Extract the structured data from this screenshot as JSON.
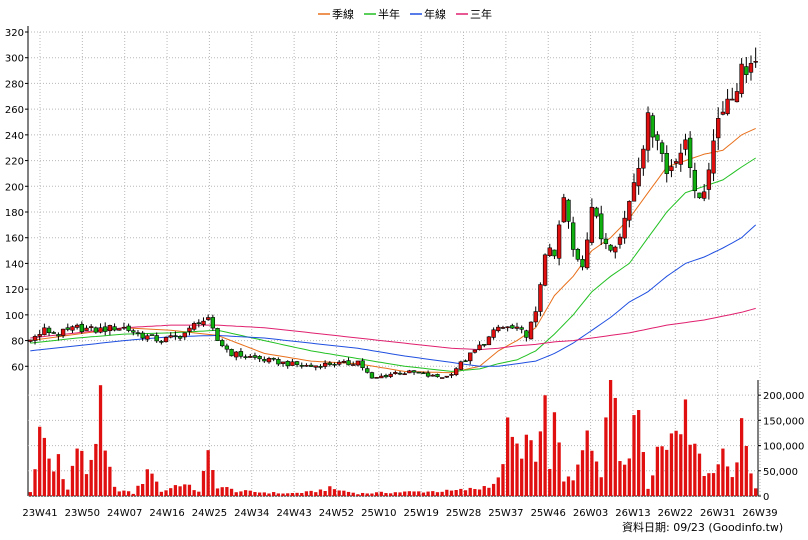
{
  "chart_data": {
    "type": "candlestick",
    "legend": [
      {
        "name": "季線",
        "color": "#e8701c"
      },
      {
        "name": "半年",
        "color": "#22c122"
      },
      {
        "name": "年線",
        "color": "#1f4fe0"
      },
      {
        "name": "三年",
        "color": "#e0206e"
      }
    ],
    "price_axis": {
      "min": 40,
      "max": 320,
      "ticks": [
        60,
        80,
        100,
        120,
        140,
        160,
        180,
        200,
        220,
        240,
        260,
        280,
        300,
        320
      ]
    },
    "volume_axis": {
      "min": 0,
      "max": 230000,
      "ticks": [
        0,
        50000,
        100000,
        150000,
        200000
      ],
      "tick_labels": [
        "0",
        "50,000",
        "100,000",
        "150,000",
        "200,000"
      ]
    },
    "x_tick_labels": [
      "23W41",
      "23W50",
      "24W07",
      "24W16",
      "24W25",
      "24W34",
      "24W43",
      "24W52",
      "25W10",
      "25W19",
      "25W28",
      "25W37",
      "25W46",
      "26W03",
      "26W13",
      "26W22",
      "26W31",
      "26W39"
    ],
    "price_anchors": [
      [
        0,
        80
      ],
      [
        3,
        88
      ],
      [
        6,
        85
      ],
      [
        10,
        90
      ],
      [
        14,
        88
      ],
      [
        18,
        90
      ],
      [
        20,
        90
      ],
      [
        24,
        84
      ],
      [
        28,
        80
      ],
      [
        32,
        84
      ],
      [
        34,
        88
      ],
      [
        36,
        96
      ],
      [
        38,
        95
      ],
      [
        40,
        80
      ],
      [
        43,
        70
      ],
      [
        46,
        68
      ],
      [
        50,
        65
      ],
      [
        55,
        62
      ],
      [
        60,
        60
      ],
      [
        64,
        62
      ],
      [
        68,
        62
      ],
      [
        70,
        64
      ],
      [
        73,
        50
      ],
      [
        78,
        55
      ],
      [
        82,
        55
      ],
      [
        86,
        52
      ],
      [
        89,
        52
      ],
      [
        92,
        62
      ],
      [
        95,
        72
      ],
      [
        98,
        82
      ],
      [
        100,
        90
      ],
      [
        102,
        90
      ],
      [
        104,
        88
      ],
      [
        106,
        85
      ],
      [
        108,
        100
      ],
      [
        110,
        150
      ],
      [
        112,
        145
      ],
      [
        114,
        190
      ],
      [
        116,
        150
      ],
      [
        118,
        140
      ],
      [
        120,
        185
      ],
      [
        122,
        160
      ],
      [
        124,
        155
      ],
      [
        126,
        160
      ],
      [
        128,
        190
      ],
      [
        130,
        220
      ],
      [
        132,
        250
      ],
      [
        134,
        240
      ],
      [
        136,
        210
      ],
      [
        138,
        225
      ],
      [
        140,
        230
      ],
      [
        142,
        200
      ],
      [
        144,
        190
      ],
      [
        146,
        240
      ],
      [
        148,
        265
      ],
      [
        150,
        270
      ],
      [
        152,
        290
      ],
      [
        154,
        295
      ],
      [
        155,
        290
      ]
    ],
    "volume_anchors": [
      [
        0,
        8000
      ],
      [
        2,
        115000
      ],
      [
        3,
        100000
      ],
      [
        5,
        48000
      ],
      [
        6,
        82000
      ],
      [
        8,
        12000
      ],
      [
        10,
        100000
      ],
      [
        12,
        48000
      ],
      [
        13,
        75000
      ],
      [
        15,
        170000
      ],
      [
        16,
        80000
      ],
      [
        18,
        15000
      ],
      [
        22,
        5000
      ],
      [
        26,
        55000
      ],
      [
        28,
        8000
      ],
      [
        32,
        25000
      ],
      [
        36,
        10000
      ],
      [
        38,
        75000
      ],
      [
        40,
        20000
      ],
      [
        44,
        10000
      ],
      [
        48,
        8000
      ],
      [
        55,
        5000
      ],
      [
        60,
        8000
      ],
      [
        64,
        15000
      ],
      [
        70,
        5000
      ],
      [
        80,
        8000
      ],
      [
        90,
        10000
      ],
      [
        96,
        15000
      ],
      [
        100,
        30000
      ],
      [
        102,
        125000
      ],
      [
        104,
        90000
      ],
      [
        106,
        110000
      ],
      [
        108,
        65000
      ],
      [
        110,
        185000
      ],
      [
        111,
        50000
      ],
      [
        112,
        130000
      ],
      [
        114,
        40000
      ],
      [
        116,
        25000
      ],
      [
        118,
        115000
      ],
      [
        120,
        85000
      ],
      [
        122,
        35000
      ],
      [
        124,
        235000
      ],
      [
        125,
        220000
      ],
      [
        126,
        85000
      ],
      [
        128,
        80000
      ],
      [
        130,
        180000
      ],
      [
        132,
        20000
      ],
      [
        134,
        95000
      ],
      [
        136,
        100000
      ],
      [
        138,
        175000
      ],
      [
        140,
        150000
      ],
      [
        142,
        125000
      ],
      [
        144,
        40000
      ],
      [
        146,
        60000
      ],
      [
        148,
        75000
      ],
      [
        150,
        45000
      ],
      [
        152,
        120000
      ],
      [
        153,
        110000
      ],
      [
        154,
        55000
      ],
      [
        155,
        15000
      ]
    ],
    "ma_anchors": {
      "季線": [
        [
          0,
          80
        ],
        [
          10,
          85
        ],
        [
          20,
          90
        ],
        [
          30,
          88
        ],
        [
          40,
          84
        ],
        [
          50,
          70
        ],
        [
          60,
          64
        ],
        [
          70,
          62
        ],
        [
          80,
          56
        ],
        [
          90,
          55
        ],
        [
          96,
          60
        ],
        [
          100,
          72
        ],
        [
          104,
          80
        ],
        [
          108,
          90
        ],
        [
          112,
          115
        ],
        [
          116,
          130
        ],
        [
          120,
          150
        ],
        [
          124,
          160
        ],
        [
          128,
          175
        ],
        [
          132,
          195
        ],
        [
          136,
          215
        ],
        [
          140,
          220
        ],
        [
          144,
          225
        ],
        [
          148,
          228
        ],
        [
          152,
          240
        ],
        [
          155,
          245
        ]
      ],
      "半年": [
        [
          0,
          78
        ],
        [
          10,
          82
        ],
        [
          20,
          85
        ],
        [
          30,
          86
        ],
        [
          40,
          88
        ],
        [
          50,
          80
        ],
        [
          60,
          72
        ],
        [
          70,
          66
        ],
        [
          80,
          60
        ],
        [
          90,
          56
        ],
        [
          96,
          58
        ],
        [
          100,
          62
        ],
        [
          104,
          65
        ],
        [
          108,
          72
        ],
        [
          112,
          85
        ],
        [
          116,
          100
        ],
        [
          120,
          118
        ],
        [
          124,
          130
        ],
        [
          128,
          140
        ],
        [
          132,
          160
        ],
        [
          136,
          180
        ],
        [
          140,
          195
        ],
        [
          144,
          200
        ],
        [
          148,
          205
        ],
        [
          152,
          215
        ],
        [
          155,
          222
        ]
      ],
      "年線": [
        [
          0,
          72
        ],
        [
          10,
          76
        ],
        [
          20,
          80
        ],
        [
          30,
          83
        ],
        [
          40,
          84
        ],
        [
          50,
          82
        ],
        [
          60,
          78
        ],
        [
          70,
          74
        ],
        [
          80,
          68
        ],
        [
          90,
          63
        ],
        [
          96,
          60
        ],
        [
          100,
          60
        ],
        [
          104,
          62
        ],
        [
          108,
          64
        ],
        [
          112,
          70
        ],
        [
          116,
          78
        ],
        [
          120,
          88
        ],
        [
          124,
          98
        ],
        [
          128,
          110
        ],
        [
          132,
          118
        ],
        [
          136,
          130
        ],
        [
          140,
          140
        ],
        [
          144,
          145
        ],
        [
          148,
          152
        ],
        [
          152,
          160
        ],
        [
          155,
          170
        ]
      ],
      "三年": [
        [
          0,
          82
        ],
        [
          10,
          86
        ],
        [
          20,
          90
        ],
        [
          30,
          92
        ],
        [
          40,
          92
        ],
        [
          50,
          90
        ],
        [
          60,
          86
        ],
        [
          70,
          82
        ],
        [
          80,
          78
        ],
        [
          90,
          74
        ],
        [
          96,
          73
        ],
        [
          100,
          74
        ],
        [
          104,
          76
        ],
        [
          108,
          77
        ],
        [
          112,
          79
        ],
        [
          116,
          80
        ],
        [
          120,
          82
        ],
        [
          124,
          84
        ],
        [
          128,
          86
        ],
        [
          132,
          89
        ],
        [
          136,
          92
        ],
        [
          140,
          94
        ],
        [
          144,
          96
        ],
        [
          148,
          99
        ],
        [
          152,
          102
        ],
        [
          155,
          105
        ]
      ]
    },
    "footer_text": "資料日期: 09/23  (Goodinfo.tw)"
  }
}
